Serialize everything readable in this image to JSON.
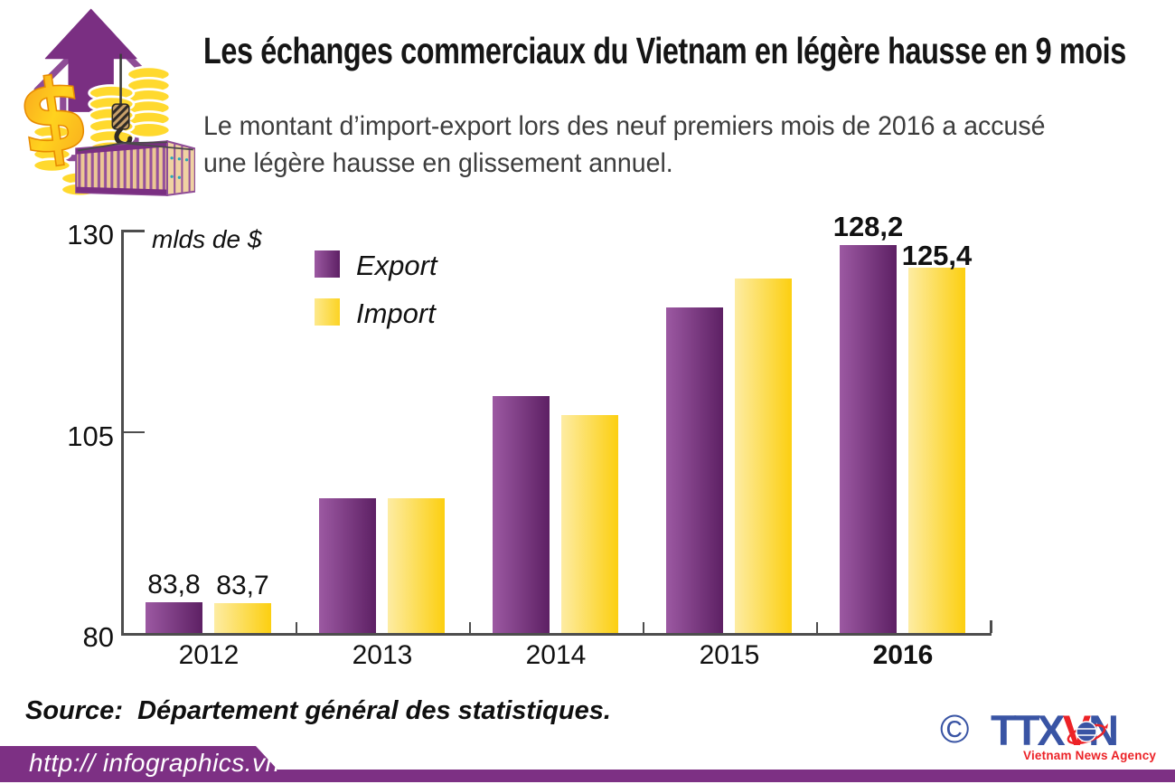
{
  "header": {
    "title": "Les échanges commerciaux du Vietnam en légère hausse en 9 mois",
    "subtitle_line1": "Le montant d’import-export lors des neuf premiers mois de 2016 a accusé",
    "subtitle_line2": "une légère hausse en glissement annuel.",
    "icon": "trade-growth-illustration"
  },
  "chart_data": {
    "type": "bar",
    "title": "",
    "unit_label": "mlds de $",
    "categories": [
      "2012",
      "2013",
      "2014",
      "2015",
      "2016"
    ],
    "series": [
      {
        "name": "Export",
        "color_from": "#9c59a2",
        "color_to": "#5d2064",
        "values": [
          83.8,
          96.7,
          109.4,
          120.4,
          128.2
        ]
      },
      {
        "name": "Import",
        "color_from": "#fdeca3",
        "color_to": "#fccf10",
        "values": [
          83.7,
          96.7,
          107.1,
          124.1,
          125.4
        ]
      }
    ],
    "value_labels": [
      {
        "series": "Export",
        "category": "2012",
        "text": "83,8"
      },
      {
        "series": "Import",
        "category": "2012",
        "text": "83,7"
      },
      {
        "series": "Export",
        "category": "2016",
        "text": "128,2"
      },
      {
        "series": "Import",
        "category": "2016",
        "text": "125,4"
      }
    ],
    "yticks": [
      80,
      105,
      130
    ],
    "ylim": [
      80,
      130
    ],
    "legend_position": "top-left-inside",
    "grid": false,
    "highlighted_category": "2016"
  },
  "footer": {
    "source_label": "Source:",
    "source_text": "Département général des statistiques.",
    "url": "http:// infographics.vn",
    "copyright_symbol": "©",
    "agency": {
      "letters_blue_1": "TTX",
      "letters_red": "V",
      "letters_blue_2": "N",
      "tagline": "Vietnam News Agency"
    }
  },
  "colors": {
    "banner_purple": "#7d3084",
    "axis_gray": "#4d4d4d",
    "logo_blue": "#3954a4",
    "logo_red": "#ec2227",
    "legend_import_from": "#fde98c",
    "legend_import_to": "#fcd323"
  }
}
